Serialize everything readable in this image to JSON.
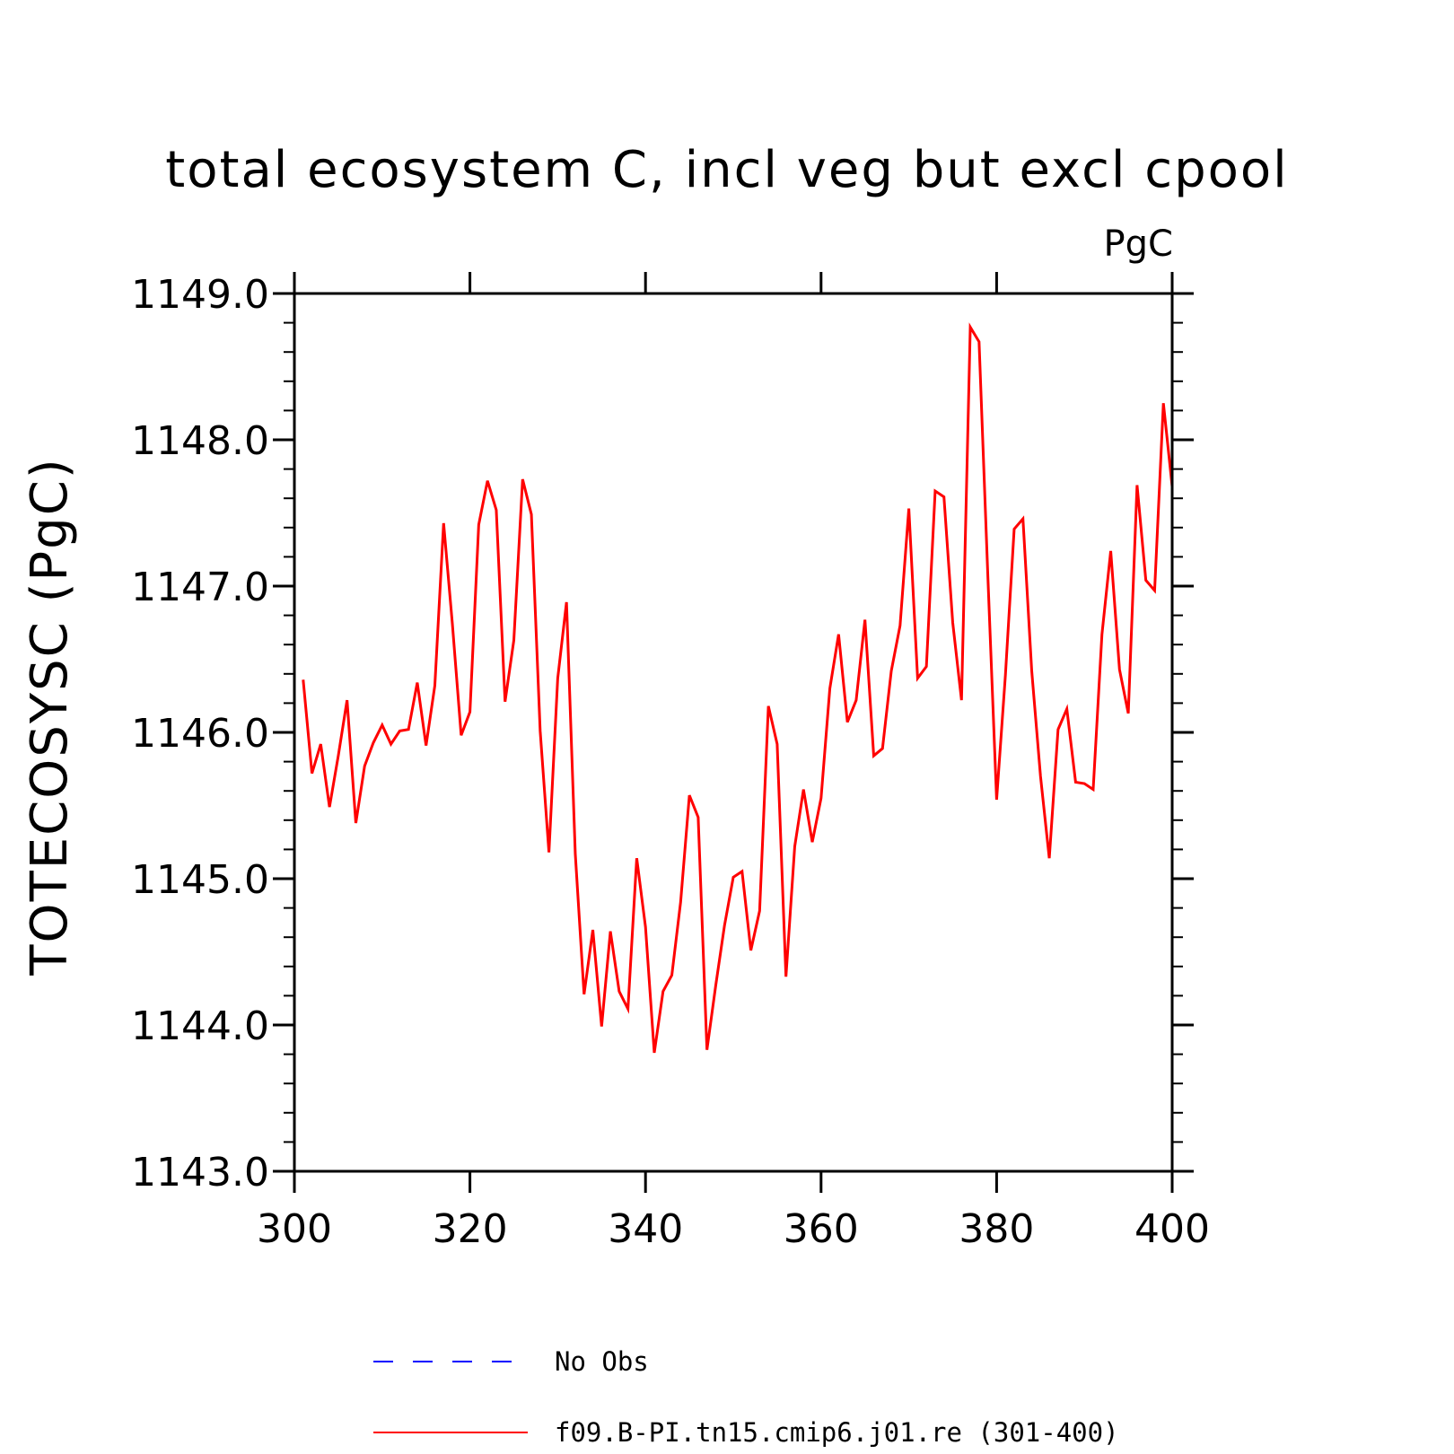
{
  "chart_data": {
    "type": "line",
    "title": "total ecosystem C, incl veg but excl cpool",
    "units": "PgC",
    "xlabel": "",
    "ylabel": "TOTECOSYSC  (PgC)",
    "xlim": [
      300,
      400
    ],
    "ylim": [
      1143.0,
      1149.0
    ],
    "x_ticks": [
      "300",
      "320",
      "340",
      "360",
      "380",
      "400"
    ],
    "y_ticks": [
      "1143.0",
      "1144.0",
      "1145.0",
      "1146.0",
      "1147.0",
      "1148.0",
      "1149.0"
    ],
    "grid": false,
    "legend_position": "bottom",
    "series": [
      {
        "name": "No Obs",
        "color": "#0000ff",
        "style": "dashed",
        "x": [],
        "y": []
      },
      {
        "name": "f09.B-PI.tn15.cmip6.j01.re (301-400)",
        "color": "#ff0000",
        "style": "solid",
        "x": [
          301,
          302,
          303,
          304,
          305,
          306,
          307,
          308,
          309,
          310,
          311,
          312,
          313,
          314,
          315,
          316,
          317,
          318,
          319,
          320,
          321,
          322,
          323,
          324,
          325,
          326,
          327,
          328,
          329,
          330,
          331,
          332,
          333,
          334,
          335,
          336,
          337,
          338,
          339,
          340,
          341,
          342,
          343,
          344,
          345,
          346,
          347,
          348,
          349,
          350,
          351,
          352,
          353,
          354,
          355,
          356,
          357,
          358,
          359,
          360,
          361,
          362,
          363,
          364,
          365,
          366,
          367,
          368,
          369,
          370,
          371,
          372,
          373,
          374,
          375,
          376,
          377,
          378,
          379,
          380,
          381,
          382,
          383,
          384,
          385,
          386,
          387,
          388,
          389,
          390,
          391,
          392,
          393,
          394,
          395,
          396,
          397,
          398,
          399,
          400
        ],
        "y": [
          1146.36,
          1145.72,
          1145.92,
          1145.49,
          1145.84,
          1146.22,
          1145.38,
          1145.77,
          1145.93,
          1146.05,
          1145.92,
          1146.01,
          1146.02,
          1146.34,
          1145.91,
          1146.32,
          1147.43,
          1146.74,
          1145.98,
          1146.14,
          1147.42,
          1147.72,
          1147.52,
          1146.21,
          1146.63,
          1147.73,
          1147.49,
          1146.01,
          1145.18,
          1146.37,
          1146.89,
          1145.17,
          1144.21,
          1144.65,
          1143.99,
          1144.64,
          1144.23,
          1144.11,
          1145.14,
          1144.67,
          1143.81,
          1144.23,
          1144.34,
          1144.84,
          1145.57,
          1145.42,
          1143.83,
          1144.27,
          1144.68,
          1145.01,
          1145.05,
          1144.51,
          1144.78,
          1146.18,
          1145.92,
          1144.33,
          1145.22,
          1145.61,
          1145.25,
          1145.55,
          1146.3,
          1146.67,
          1146.07,
          1146.22,
          1146.77,
          1145.84,
          1145.89,
          1146.42,
          1146.73,
          1147.53,
          1146.37,
          1146.45,
          1147.65,
          1147.61,
          1146.75,
          1146.22,
          1148.77,
          1148.67,
          1147.07,
          1145.54,
          1146.39,
          1147.39,
          1147.46,
          1146.42,
          1145.7,
          1145.14,
          1146.02,
          1146.16,
          1145.66,
          1145.65,
          1145.61,
          1146.67,
          1147.24,
          1146.43,
          1146.13,
          1147.69,
          1147.04,
          1146.97,
          1148.25,
          1147.68
        ]
      }
    ]
  }
}
